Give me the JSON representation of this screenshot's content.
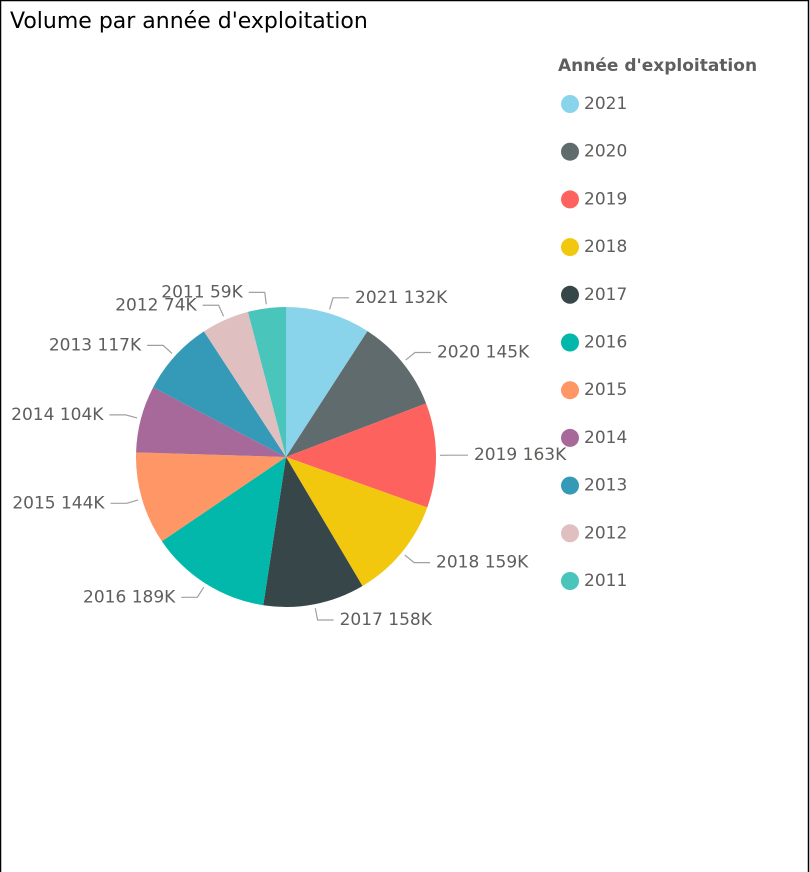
{
  "chart_data": {
    "type": "pie",
    "title": "Volume par année d'exploitation",
    "legend_title": "Année d'exploitation",
    "legend": "right",
    "categories": [
      "2021",
      "2020",
      "2019",
      "2018",
      "2017",
      "2016",
      "2015",
      "2014",
      "2013",
      "2012",
      "2011"
    ],
    "values": [
      132000,
      145000,
      163000,
      159000,
      158000,
      189000,
      144000,
      104000,
      117000,
      74000,
      59000
    ],
    "value_labels": [
      "132K",
      "145K",
      "163K",
      "159K",
      "158K",
      "189K",
      "144K",
      "104K",
      "117K",
      "74K",
      "59K"
    ],
    "colors": [
      "#8AD4EB",
      "#5F6B6D",
      "#FD625E",
      "#F2C80F",
      "#374649",
      "#01B8AA",
      "#FE9666",
      "#A66999",
      "#3599B8",
      "#DFBFBF",
      "#4AC5BB"
    ]
  }
}
